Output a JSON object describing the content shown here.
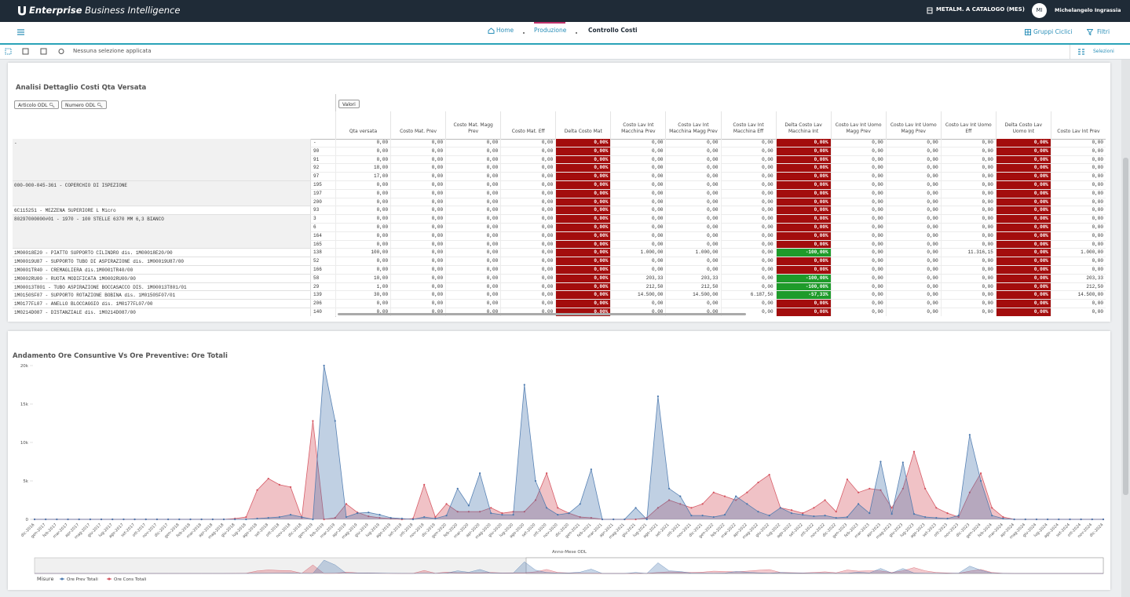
{
  "header": {
    "brand": {
      "bold": "Enterprise",
      "rest": "Business Intelligence"
    },
    "context": "METALM. A CATALOGO (MES)",
    "user_initials": "MI",
    "user_name": "Michelangelo Ingrassia"
  },
  "nav": {
    "breadcrumbs": [
      "Home",
      "Produzione",
      "Controllo Costi"
    ],
    "actions": [
      "Gruppi Ciclici",
      "Filtri"
    ]
  },
  "selection": {
    "status": "Nessuna selezione applicata",
    "button": "Selezioni"
  },
  "table": {
    "title": "Analisi Dettaglio Costi Qta Versata",
    "filters": [
      "Articolo ODL",
      "Numero ODL"
    ],
    "values_button": "Valori",
    "columns": [
      "Qta versata",
      "Costo Mat. Prev",
      "Costo Mat. Magg Prev",
      "Costo Mat. Eff",
      "Delta Costo Mat",
      "Costo Lav Int Macchina Prev",
      "Costo Lav Int Macchina Magg Prev",
      "Costo Lav Int Macchina Eff",
      "Delta Costo Lav Macchina Int",
      "Costo Lav Int Uomo Magg Prev",
      "Costo Lav Int Uomo Magg Prev",
      "Costo Lav Int Uomo Eff",
      "Delta Costo Lav Uomo Int",
      "Costo Lav Int Prev"
    ],
    "groups": [
      {
        "article": "-",
        "rows": [
          {
            "odl": "-",
            "cells": [
              "0,00",
              "0,00",
              "0,00",
              "0,00",
              "0,00%",
              "0,00",
              "0,00",
              "0,00",
              "0,00%",
              "0,00",
              "0,00",
              "0,00",
              "0,00%",
              "0,00"
            ]
          },
          {
            "odl": "90",
            "cells": [
              "0,00",
              "0,00",
              "0,00",
              "0,00",
              "0,00%",
              "0,00",
              "0,00",
              "0,00",
              "0,00%",
              "0,00",
              "0,00",
              "0,00",
              "0,00%",
              "0,00"
            ]
          },
          {
            "odl": "91",
            "cells": [
              "0,00",
              "0,00",
              "0,00",
              "0,00",
              "0,00%",
              "0,00",
              "0,00",
              "0,00",
              "0,00%",
              "0,00",
              "0,00",
              "0,00",
              "0,00%",
              "0,00"
            ]
          },
          {
            "odl": "92",
            "cells": [
              "18,00",
              "0,00",
              "0,00",
              "0,00",
              "0,00%",
              "0,00",
              "0,00",
              "0,00",
              "0,00%",
              "0,00",
              "0,00",
              "0,00",
              "0,00%",
              "0,00"
            ]
          },
          {
            "odl": "97",
            "cells": [
              "17,00",
              "0,00",
              "0,00",
              "0,00",
              "0,00%",
              "0,00",
              "0,00",
              "0,00",
              "0,00%",
              "0,00",
              "0,00",
              "0,00",
              "0,00%",
              "0,00"
            ]
          }
        ]
      },
      {
        "article": "000-000-045-361 - COPERCHIO DI ISPEZIONE",
        "rows": [
          {
            "odl": "195",
            "cells": [
              "0,00",
              "0,00",
              "0,00",
              "0,00",
              "0,00%",
              "0,00",
              "0,00",
              "0,00",
              "0,00%",
              "0,00",
              "0,00",
              "0,00",
              "0,00%",
              "0,00"
            ]
          },
          {
            "odl": "197",
            "cells": [
              "0,00",
              "0,00",
              "0,00",
              "0,00",
              "0,00%",
              "0,00",
              "0,00",
              "0,00",
              "0,00%",
              "0,00",
              "0,00",
              "0,00",
              "0,00%",
              "0,00"
            ]
          },
          {
            "odl": "200",
            "cells": [
              "0,00",
              "0,00",
              "0,00",
              "0,00",
              "0,00%",
              "0,00",
              "0,00",
              "0,00",
              "0,00%",
              "0,00",
              "0,00",
              "0,00",
              "0,00%",
              "0,00"
            ]
          }
        ]
      },
      {
        "article": "6C115251 - MEZZENA SUPERIORE L Micro",
        "rows": [
          {
            "odl": "93",
            "cells": [
              "0,00",
              "0,00",
              "0,00",
              "0,00",
              "0,00%",
              "0,00",
              "0,00",
              "0,00",
              "0,00%",
              "0,00",
              "0,00",
              "0,00",
              "0,00%",
              "0,00"
            ]
          }
        ]
      },
      {
        "article": "80297000000#01 - 1970 - 100 STELLE 6370 MM 6,3 BIANCO",
        "rows": [
          {
            "odl": "3",
            "cells": [
              "0,00",
              "0,00",
              "0,00",
              "0,00",
              "0,00%",
              "0,00",
              "0,00",
              "0,00",
              "0,00%",
              "0,00",
              "0,00",
              "0,00",
              "0,00%",
              "0,00"
            ]
          },
          {
            "odl": "6",
            "cells": [
              "0,00",
              "0,00",
              "0,00",
              "0,00",
              "0,00%",
              "0,00",
              "0,00",
              "0,00",
              "0,00%",
              "0,00",
              "0,00",
              "0,00",
              "0,00%",
              "0,00"
            ]
          },
          {
            "odl": "164",
            "cells": [
              "0,00",
              "0,00",
              "0,00",
              "0,00",
              "0,00%",
              "0,00",
              "0,00",
              "0,00",
              "0,00%",
              "0,00",
              "0,00",
              "0,00",
              "0,00%",
              "0,00"
            ]
          },
          {
            "odl": "165",
            "cells": [
              "0,00",
              "0,00",
              "0,00",
              "0,00",
              "0,00%",
              "0,00",
              "0,00",
              "0,00",
              "0,00%",
              "0,00",
              "0,00",
              "0,00",
              "0,00%",
              "0,00"
            ]
          }
        ]
      },
      {
        "article": "1M00018E20 - PIATTO SUPPORTO CILINDRO dis. 1M00018E20/00",
        "rows": [
          {
            "odl": "138",
            "cells": [
              "100,00",
              "0,00",
              "0,00",
              "0,00",
              "0,00%",
              "1.000,00",
              "1.000,00",
              "0,00",
              "-100,00%",
              "0,00",
              "0,00",
              "11.316,15",
              "0,00%",
              "1.000,00"
            ]
          }
        ]
      },
      {
        "article": "1M00019U87 - SUPPORTO TUBO DI ASPIRAZIONE dis. 1M00019U87/00",
        "rows": [
          {
            "odl": "52",
            "cells": [
              "0,00",
              "0,00",
              "0,00",
              "0,00",
              "0,00%",
              "0,00",
              "0,00",
              "0,00",
              "0,00%",
              "0,00",
              "0,00",
              "0,00",
              "0,00%",
              "0,00"
            ]
          }
        ]
      },
      {
        "article": "1M0001TR40 - CREMAGLIERA dis.1M0001TR40/00",
        "rows": [
          {
            "odl": "166",
            "cells": [
              "0,00",
              "0,00",
              "0,00",
              "0,00",
              "0,00%",
              "0,00",
              "0,00",
              "0,00",
              "0,00%",
              "0,00",
              "0,00",
              "0,00",
              "0,00%",
              "0,00"
            ]
          }
        ]
      },
      {
        "article": "1M0002RU00 - RUOTA MODIFICATA 1M0002RU00/00",
        "rows": [
          {
            "odl": "58",
            "cells": [
              "10,00",
              "0,00",
              "0,00",
              "0,00",
              "0,00%",
              "203,33",
              "203,33",
              "0,00",
              "-100,00%",
              "0,00",
              "0,00",
              "0,00",
              "0,00%",
              "203,33"
            ]
          }
        ]
      },
      {
        "article": "1M00013T801 - TUBO ASPIRAZIONE BOCCASACCO DIS. 1M00013T801/01",
        "rows": [
          {
            "odl": "29",
            "cells": [
              "1,00",
              "0,00",
              "0,00",
              "0,00",
              "0,00%",
              "212,50",
              "212,50",
              "0,00",
              "-100,00%",
              "0,00",
              "0,00",
              "0,00",
              "0,00%",
              "212,50"
            ]
          }
        ]
      },
      {
        "article": "1M0150SF07 - SUPPORTO ROTAZIONE BOBINA dis. 1M0150SF07/01",
        "rows": [
          {
            "odl": "139",
            "cells": [
              "30,00",
              "0,00",
              "0,00",
              "0,00",
              "0,00%",
              "14.500,00",
              "14.500,00",
              "6.187,50",
              "-57,33%",
              "0,00",
              "0,00",
              "0,00",
              "0,00%",
              "14.500,00"
            ]
          }
        ]
      },
      {
        "article": "1M0177FL07 - ANELLO BLOCCAGGIO dis. 1M0177FL07/00",
        "rows": [
          {
            "odl": "206",
            "cells": [
              "0,00",
              "0,00",
              "0,00",
              "0,00",
              "0,00%",
              "0,00",
              "0,00",
              "0,00",
              "0,00%",
              "0,00",
              "0,00",
              "0,00",
              "0,00%",
              "0,00"
            ]
          }
        ]
      },
      {
        "article": "1M0214D087 - DISTANZIALE dis. 1M0214D087/00",
        "rows": [
          {
            "odl": "140",
            "cells": [
              "0,00",
              "0,00",
              "0,00",
              "0,00",
              "0,00%",
              "0,00",
              "0,00",
              "0,00",
              "0,00%",
              "0,00",
              "0,00",
              "0,00",
              "0,00%",
              "0,00"
            ]
          }
        ]
      }
    ]
  },
  "chart_data": {
    "type": "area",
    "title": "Andamento Ore Consuntive Vs Ore Preventive: Ore Totali",
    "x_label": "Anno-Mese ODL",
    "legend_title": "Misure",
    "categories": [
      "dic-2016",
      "gen-2017",
      "feb-2017",
      "mar-2017",
      "apr-2017",
      "mag-2017",
      "giu-2017",
      "lug-2017",
      "ago-2017",
      "set-2017",
      "ott-2017",
      "nov-2017",
      "dic-2017",
      "gen-2018",
      "feb-2018",
      "mar-2018",
      "apr-2018",
      "mag-2018",
      "giu-2018",
      "lug-2018",
      "ago-2018",
      "set-2018",
      "ott-2018",
      "nov-2018",
      "dic-2018",
      "gen-2019",
      "feb-2019",
      "mar-2019",
      "apr-2019",
      "mag-2019",
      "giu-2019",
      "lug-2019",
      "ago-2019",
      "set-2019",
      "ott-2019",
      "nov-2019",
      "dic-2019",
      "gen-2020",
      "feb-2020",
      "mar-2020",
      "apr-2020",
      "mag-2020",
      "giu-2020",
      "lug-2020",
      "ago-2020",
      "set-2020",
      "ott-2020",
      "nov-2020",
      "dic-2020",
      "gen-2021",
      "feb-2021",
      "mar-2021",
      "apr-2021",
      "mag-2021",
      "giu-2021",
      "lug-2021",
      "ago-2021",
      "set-2021",
      "ott-2021",
      "nov-2021",
      "dic-2021",
      "gen-2022",
      "feb-2022",
      "mar-2022",
      "apr-2022",
      "mag-2022",
      "giu-2022",
      "lug-2022",
      "ago-2022",
      "set-2022",
      "ott-2022",
      "nov-2022",
      "dic-2022",
      "gen-2023",
      "feb-2023",
      "mar-2023",
      "apr-2023",
      "mag-2023",
      "giu-2023",
      "lug-2023",
      "ago-2023",
      "set-2023",
      "ott-2023",
      "nov-2023",
      "dic-2023",
      "gen-2024",
      "feb-2024",
      "mar-2024",
      "apr-2024",
      "mag-2024",
      "giu-2024",
      "lug-2024",
      "ago-2024",
      "set-2024",
      "ott-2024",
      "nov-2024",
      "dic-2024"
    ],
    "series": [
      {
        "name": "Ore Cons Totali",
        "color": "#d4505c",
        "values": [
          0,
          0,
          0,
          0,
          0,
          0,
          0,
          0,
          0,
          0,
          0,
          0,
          0,
          0,
          0,
          0,
          0,
          0,
          100,
          300,
          3800,
          5300,
          4500,
          4200,
          200,
          12800,
          0,
          200,
          2000,
          900,
          400,
          200,
          100,
          0,
          100,
          4500,
          300,
          2000,
          1000,
          1000,
          1000,
          1500,
          800,
          1000,
          1000,
          2500,
          6000,
          1500,
          800,
          300,
          200,
          0,
          0,
          0,
          0,
          200,
          1500,
          2500,
          2000,
          1500,
          2000,
          3500,
          3000,
          2500,
          3500,
          4800,
          5800,
          1500,
          1200,
          800,
          1500,
          2500,
          1000,
          5200,
          3500,
          4000,
          3800,
          1500,
          4000,
          8800,
          4000,
          1500,
          800,
          300,
          3500,
          6000,
          1500,
          300,
          0,
          0,
          0,
          0,
          0,
          0,
          0,
          0,
          0
        ]
      },
      {
        "name": "Ore Prev Totali",
        "color": "#4a78ae",
        "values": [
          0,
          0,
          0,
          0,
          0,
          0,
          0,
          0,
          0,
          0,
          0,
          0,
          0,
          0,
          0,
          0,
          0,
          0,
          0,
          0,
          100,
          200,
          300,
          600,
          300,
          0,
          20000,
          12800,
          300,
          800,
          900,
          600,
          200,
          100,
          0,
          300,
          100,
          500,
          4000,
          1800,
          6000,
          800,
          600,
          600,
          17500,
          5000,
          1500,
          600,
          800,
          2000,
          6500,
          0,
          0,
          0,
          1500,
          0,
          16000,
          4000,
          3000,
          500,
          500,
          300,
          600,
          3000,
          2000,
          1000,
          500,
          1500,
          800,
          600,
          400,
          500,
          200,
          300,
          2000,
          800,
          7500,
          700,
          7400,
          700,
          300,
          200,
          100,
          500,
          11000,
          5000,
          500,
          100,
          0,
          0,
          0,
          0,
          0,
          0,
          0,
          0,
          0
        ]
      }
    ],
    "ylim": [
      0,
      20000
    ],
    "yticks": [
      0,
      {
        "value": 5000,
        "label": "5k"
      },
      {
        "value": 10000,
        "label": "10k"
      },
      {
        "value": 15000,
        "label": "15k"
      },
      {
        "value": 20000,
        "label": "20k"
      }
    ],
    "grid": false
  }
}
